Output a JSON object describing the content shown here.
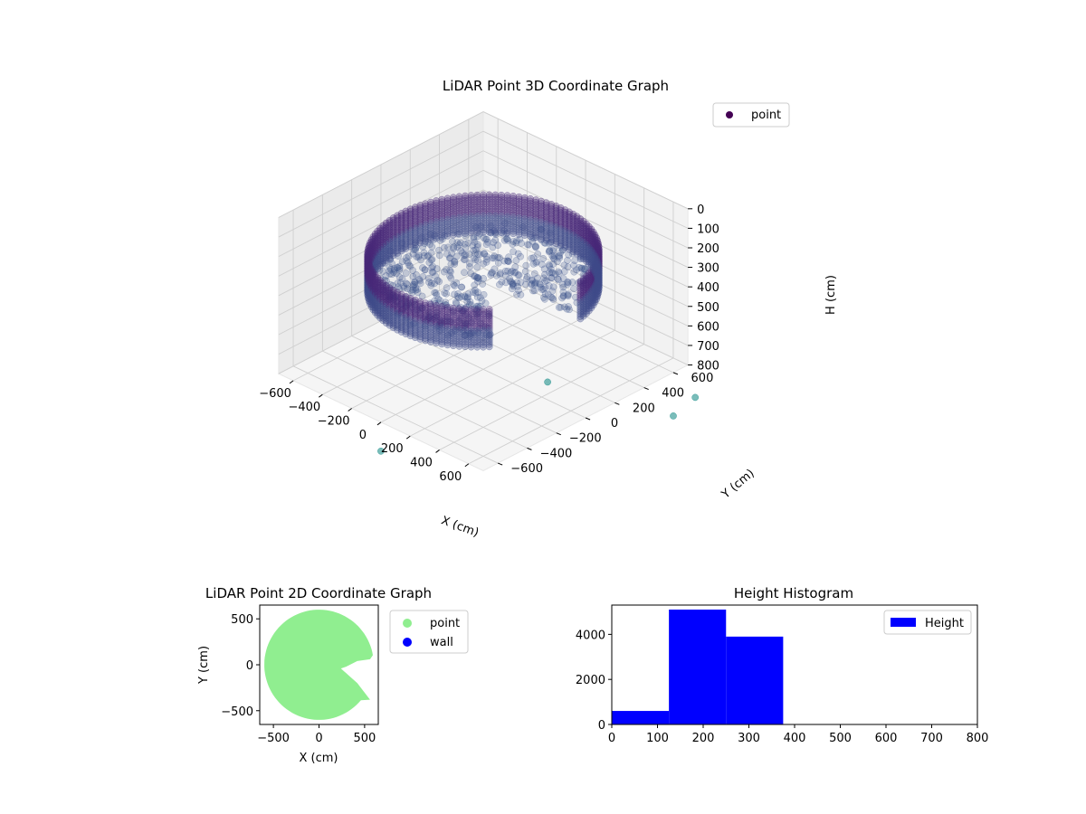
{
  "colors": {
    "viridis_start": "#440154",
    "viridis_mid": "#3b528b",
    "viridis_teal": "#21918c",
    "point_2d": "#90ee90",
    "wall_2d": "#0000ff",
    "hist_bar": "#0000ff",
    "pane_fill": "#f2f2f2",
    "grid": "#d3d3d3"
  },
  "chart_data": [
    {
      "type": "scatter",
      "projection": "3d",
      "title": "LiDAR Point 3D Coordinate Graph",
      "xlabel": "X (cm)",
      "ylabel": "Y (cm)",
      "zlabel": "H (cm)",
      "xlim": [
        -700,
        700
      ],
      "ylim": [
        -700,
        700
      ],
      "zlim": [
        800,
        0
      ],
      "x_ticks": [
        -600,
        -400,
        -200,
        0,
        200,
        400,
        600
      ],
      "y_ticks": [
        -600,
        -400,
        -200,
        0,
        200,
        400,
        600
      ],
      "z_ticks": [
        0,
        100,
        200,
        300,
        400,
        500,
        600,
        700,
        800
      ],
      "grid": true,
      "legend": {
        "location": "upper right",
        "entries": [
          {
            "label": "point",
            "color": "#440154"
          }
        ]
      },
      "description_of_points": {
        "ring_radius": 560,
        "ring_height_range": [
          200,
          400
        ],
        "open_sector_deg": [
          -40,
          10
        ],
        "outlier_points": [
          {
            "x": 560,
            "y": -120,
            "h": 620
          },
          {
            "x": 200,
            "y": -900,
            "h": 800
          },
          {
            "x": 950,
            "y": 500,
            "h": 800
          },
          {
            "x": 1000,
            "y": 300,
            "h": 800
          }
        ]
      }
    },
    {
      "type": "scatter",
      "title": "LiDAR Point 2D Coordinate Graph",
      "xlabel": "X (cm)",
      "ylabel": "Y (cm)",
      "xlim": [
        -650,
        650
      ],
      "ylim": [
        -650,
        650
      ],
      "x_ticks": [
        -500,
        0,
        500
      ],
      "y_ticks": [
        -500,
        0,
        500
      ],
      "region_radius": 600,
      "open_sector_deg": [
        -40,
        10
      ],
      "legend": {
        "location": "outside upper right",
        "entries": [
          {
            "label": "point",
            "color": "#90ee90"
          },
          {
            "label": "wall",
            "color": "#0000ff"
          }
        ]
      }
    },
    {
      "type": "bar",
      "title": "Height Histogram",
      "xlim": [
        0,
        800
      ],
      "ylim": [
        0,
        5300
      ],
      "x_ticks": [
        0,
        100,
        200,
        300,
        400,
        500,
        600,
        700,
        800
      ],
      "y_ticks": [
        0,
        2000,
        4000
      ],
      "bins": [
        {
          "start": 0,
          "end": 125,
          "count": 600
        },
        {
          "start": 125,
          "end": 250,
          "count": 5100
        },
        {
          "start": 250,
          "end": 375,
          "count": 3900
        },
        {
          "start": 375,
          "end": 500,
          "count": 0
        },
        {
          "start": 500,
          "end": 625,
          "count": 0
        },
        {
          "start": 625,
          "end": 750,
          "count": 0
        },
        {
          "start": 750,
          "end": 800,
          "count": 0
        }
      ],
      "legend": {
        "location": "upper right",
        "entries": [
          {
            "label": "Height",
            "color": "#0000ff"
          }
        ]
      }
    }
  ]
}
